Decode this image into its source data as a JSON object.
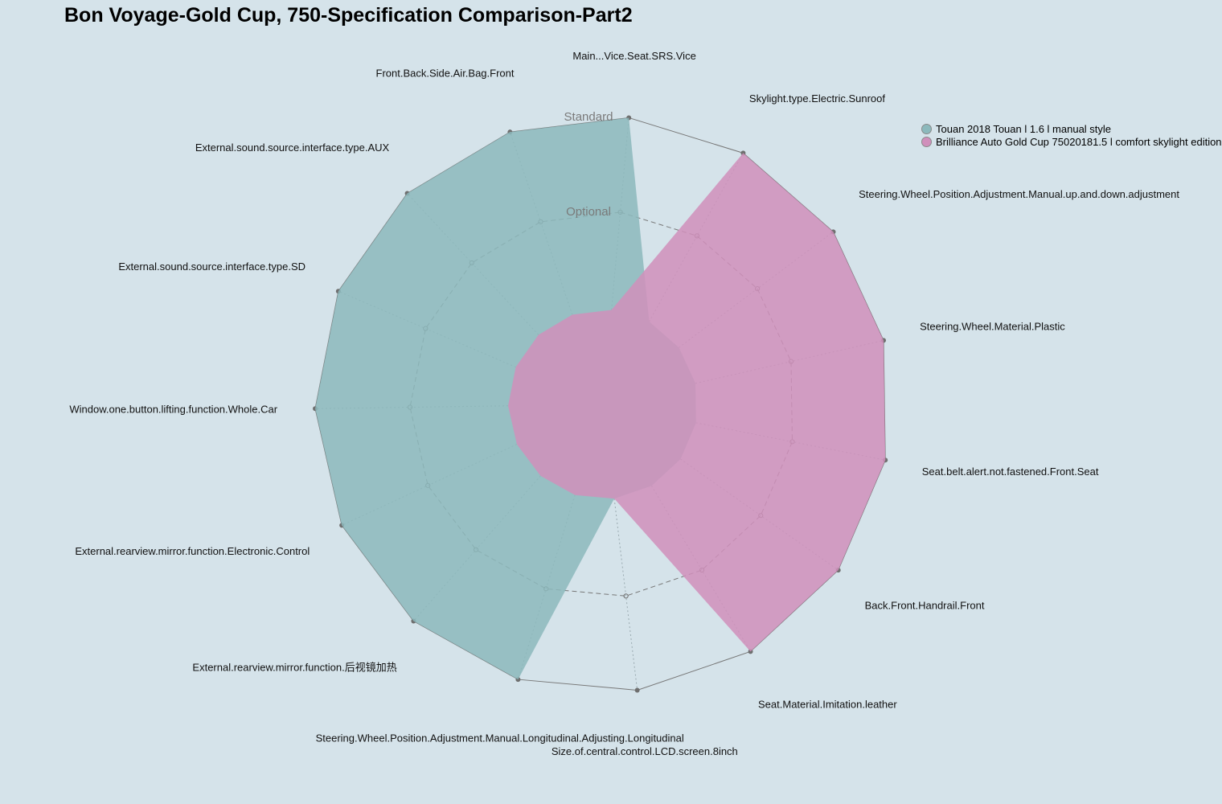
{
  "chart_data": {
    "type": "radar",
    "title": "Bon Voyage-Gold Cup, 750-Specification Comparison-Part2",
    "levels": [
      "Optional",
      "Standard"
    ],
    "axes": [
      "Main...Vice.Seat.SRS.Vice",
      "Skylight.type.Electric.Sunroof",
      "Steering.Wheel.Position.Adjustment.Manual.up.and.down.adjustment",
      "Steering.Wheel.Material.Plastic",
      "Seat.belt.alert.not.fastened.Front.Seat",
      "Back.Front.Handrail.Front",
      "Seat.Material.Imitation.leather",
      "Size.of.central.control.LCD.screen.8inch",
      "Steering.Wheel.Position.Adjustment.Manual.Longitudinal.Adjusting.Longitudinal",
      "External.rearview.mirror.function.后视镜加热",
      "External.rearview.mirror.function.Electronic.Control",
      "Window.one.button.lifting.function.Whole.Car",
      "External.sound.source.interface.type.SD",
      "External.sound.source.interface.type.AUX",
      "Front.Back.Side.Air.Bag.Front"
    ],
    "series": [
      {
        "name": "Touan 2018 Touan l 1.6 l manual style",
        "color": "#8cb9bc",
        "values": [
          "Standard",
          "None",
          "None",
          "None",
          "None",
          "None",
          "None",
          "None",
          "Standard",
          "Standard",
          "Standard",
          "Standard",
          "Standard",
          "Standard",
          "Standard"
        ]
      },
      {
        "name": "Brilliance Auto Gold Cup 75020181.5 l comfort skylight edition",
        "color": "#d08fbb",
        "values": [
          "None",
          "Standard",
          "Standard",
          "Standard",
          "Standard",
          "Standard",
          "Standard",
          "None",
          "None",
          "None",
          "None",
          "None",
          "None",
          "None",
          "None"
        ]
      }
    ]
  }
}
